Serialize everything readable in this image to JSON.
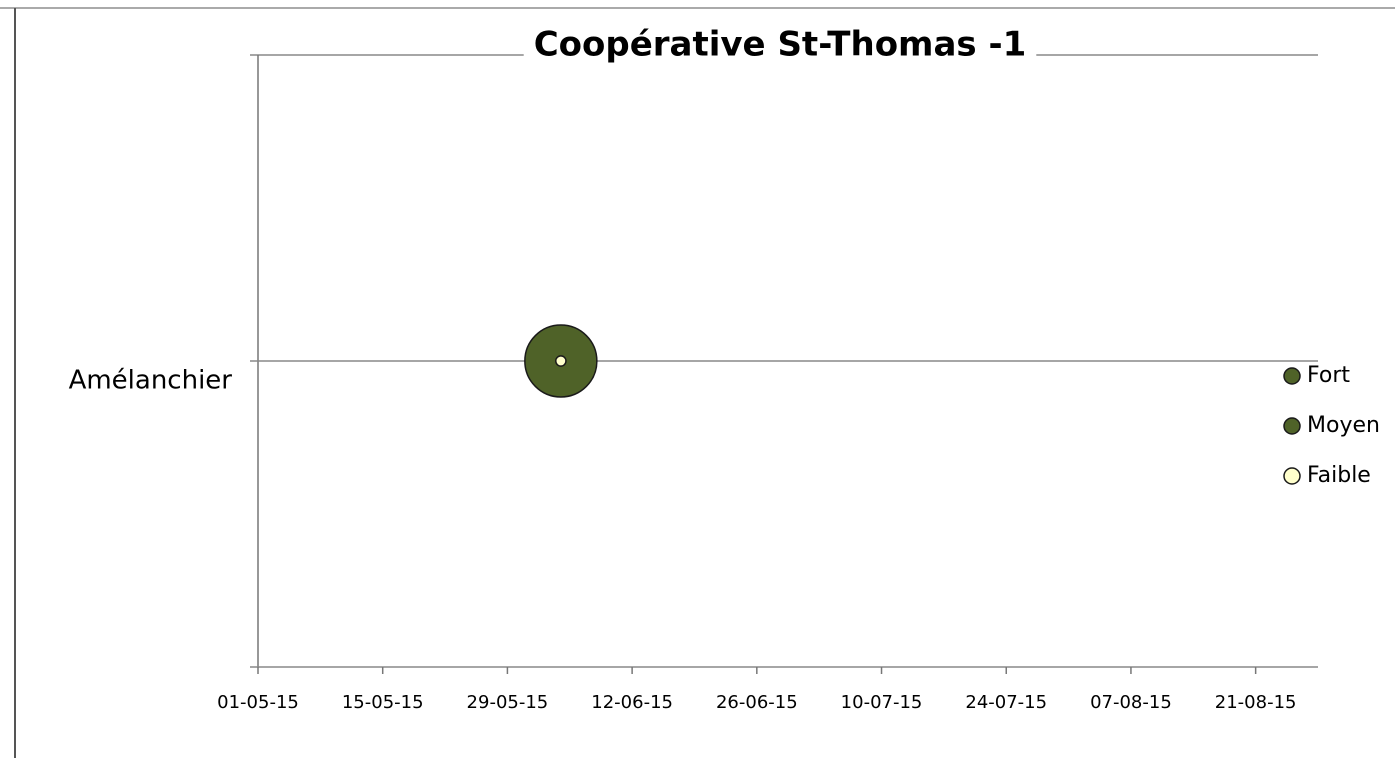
{
  "chart_data": {
    "type": "bubble",
    "title": "Coopérative St-Thomas -1",
    "xlim": [
      "2015-05-01",
      "2015-08-28"
    ],
    "xticks": [
      {
        "value": "2015-05-01",
        "label": "01-05-15"
      },
      {
        "value": "2015-05-15",
        "label": "15-05-15"
      },
      {
        "value": "2015-05-29",
        "label": "29-05-15"
      },
      {
        "value": "2015-06-12",
        "label": "12-06-15"
      },
      {
        "value": "2015-06-26",
        "label": "26-06-15"
      },
      {
        "value": "2015-07-10",
        "label": "10-07-15"
      },
      {
        "value": "2015-07-24",
        "label": "24-07-15"
      },
      {
        "value": "2015-08-07",
        "label": "07-08-15"
      },
      {
        "value": "2015-08-21",
        "label": "21-08-15"
      }
    ],
    "ylim": [
      0,
      2
    ],
    "yticks": [
      {
        "value": 1,
        "label": "Amélanchier"
      }
    ],
    "grid": true,
    "legend": "right",
    "series": [
      {
        "name": "Fort",
        "color": "#4f6228",
        "x": [],
        "values": [],
        "sizes": []
      },
      {
        "name": "Moyen",
        "color": "#4f6228",
        "x": [
          "2015-06-04"
        ],
        "values": [
          1
        ],
        "sizes": [
          50
        ]
      },
      {
        "name": "Faible",
        "color": "#ffffcc",
        "x": [
          "2015-06-04"
        ],
        "values": [
          1
        ],
        "sizes": [
          1
        ]
      }
    ]
  }
}
